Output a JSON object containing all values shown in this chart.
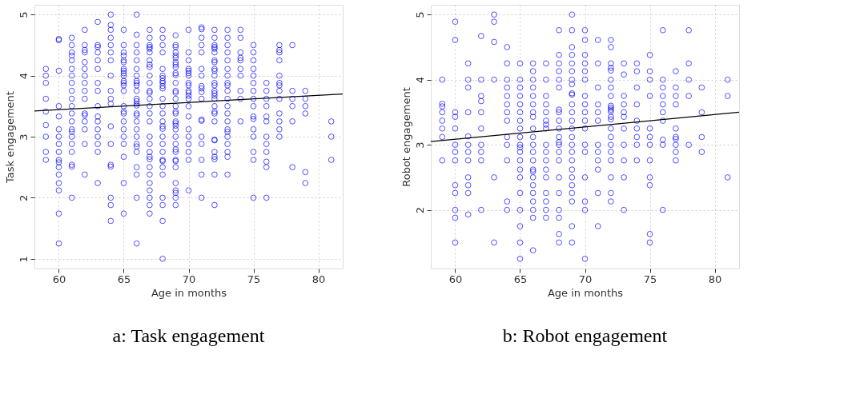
{
  "chart_data": [
    {
      "type": "scatter",
      "title": "a: Task engagement",
      "xlabel": "Age in months",
      "ylabel": "Task engagement",
      "xlim": [
        58.12,
        81.88
      ],
      "ylim": [
        0.84,
        5.16
      ],
      "xticks": [
        60,
        65,
        70,
        75,
        80
      ],
      "yticks": [
        1,
        2,
        3,
        4,
        5
      ],
      "grid": true,
      "series": [
        {
          "color": "#0000ff",
          "marker": "circle",
          "x": [
            59,
            59,
            59,
            59,
            59,
            59,
            59,
            59,
            59,
            60,
            60,
            60,
            60,
            60,
            60,
            60,
            60,
            60,
            60,
            60,
            60,
            60,
            60,
            60,
            60,
            60,
            61,
            61,
            61,
            61,
            61,
            61,
            61,
            61,
            61,
            61,
            61,
            61,
            61,
            61,
            61,
            61,
            61,
            61,
            61,
            61,
            61,
            62,
            62,
            62,
            62,
            62,
            62,
            62,
            62,
            62,
            62,
            62,
            62,
            62,
            62,
            62,
            62,
            63,
            63,
            63,
            63,
            63,
            63,
            63,
            63,
            63,
            63,
            63,
            63,
            63,
            63,
            63,
            63,
            64,
            64,
            64,
            64,
            64,
            64,
            64,
            64,
            64,
            64,
            64,
            64,
            64,
            64,
            64,
            64,
            64,
            64,
            65,
            65,
            65,
            65,
            65,
            65,
            65,
            65,
            65,
            65,
            65,
            65,
            65,
            65,
            65,
            65,
            65,
            65,
            65,
            65,
            65,
            65,
            65,
            65,
            66,
            66,
            66,
            66,
            66,
            66,
            66,
            66,
            66,
            66,
            66,
            66,
            66,
            66,
            66,
            66,
            66,
            66,
            66,
            66,
            66,
            66,
            66,
            66,
            66,
            66,
            66,
            67,
            67,
            67,
            67,
            67,
            67,
            67,
            67,
            67,
            67,
            67,
            67,
            67,
            67,
            67,
            67,
            67,
            67,
            67,
            67,
            67,
            67,
            67,
            67,
            67,
            67,
            67,
            67,
            67,
            68,
            68,
            68,
            68,
            68,
            68,
            68,
            68,
            68,
            68,
            68,
            68,
            68,
            68,
            68,
            68,
            68,
            68,
            68,
            68,
            68,
            68,
            68,
            68,
            68,
            68,
            68,
            68,
            69,
            69,
            69,
            69,
            69,
            69,
            69,
            69,
            69,
            69,
            69,
            69,
            69,
            69,
            69,
            69,
            69,
            69,
            69,
            69,
            69,
            69,
            69,
            69,
            69,
            69,
            69,
            69,
            69,
            69,
            69,
            69,
            69,
            69,
            70,
            70,
            70,
            70,
            70,
            70,
            70,
            70,
            70,
            70,
            70,
            70,
            70,
            70,
            70,
            70,
            70,
            70,
            70,
            70,
            70,
            71,
            71,
            71,
            71,
            71,
            71,
            71,
            71,
            71,
            71,
            71,
            71,
            71,
            71,
            71,
            71,
            71,
            71,
            72,
            72,
            72,
            72,
            72,
            72,
            72,
            72,
            72,
            72,
            72,
            72,
            72,
            72,
            72,
            72,
            72,
            72,
            72,
            72,
            72,
            72,
            72,
            72,
            72,
            72,
            72,
            72,
            73,
            73,
            73,
            73,
            73,
            73,
            73,
            73,
            73,
            73,
            73,
            73,
            73,
            73,
            73,
            73,
            73,
            73,
            73,
            73,
            73,
            74,
            74,
            74,
            74,
            74,
            74,
            74,
            74,
            74,
            74,
            75,
            75,
            75,
            75,
            75,
            75,
            75,
            75,
            75,
            75,
            75,
            75,
            75,
            75,
            75,
            75,
            76,
            76,
            76,
            76,
            76,
            76,
            76,
            76,
            76,
            76,
            76,
            76,
            77,
            77,
            77,
            77,
            77,
            77,
            77,
            77,
            77,
            77,
            77,
            77,
            77,
            78,
            78,
            78,
            78,
            78,
            78,
            79,
            79,
            79,
            79,
            79,
            79,
            81,
            81,
            81
          ],
          "values": [
            4.11,
            4.0,
            3.88,
            3.62,
            3.41,
            3.19,
            3.0,
            2.75,
            2.62,
            4.6,
            4.58,
            4.08,
            3.5,
            3.33,
            3.12,
            3.0,
            2.88,
            2.75,
            2.62,
            2.58,
            2.5,
            2.38,
            2.24,
            2.12,
            1.74,
            1.25,
            4.62,
            4.5,
            4.38,
            4.33,
            4.25,
            4.11,
            4.0,
            3.88,
            3.75,
            3.62,
            3.5,
            3.38,
            3.25,
            3.12,
            3.08,
            3.0,
            2.88,
            2.75,
            2.54,
            2.51,
            2.0,
            4.75,
            4.5,
            4.42,
            4.38,
            4.22,
            4.11,
            4.0,
            3.88,
            3.75,
            3.62,
            3.38,
            3.35,
            3.25,
            3.12,
            2.88,
            2.38,
            4.88,
            4.5,
            4.47,
            4.38,
            4.25,
            4.11,
            3.88,
            3.75,
            3.5,
            3.33,
            3.25,
            3.12,
            3.0,
            2.88,
            2.75,
            2.24,
            5.0,
            4.83,
            4.75,
            4.62,
            4.5,
            4.38,
            4.25,
            4.0,
            3.75,
            3.62,
            3.54,
            3.17,
            2.88,
            2.54,
            2.51,
            2.0,
            1.88,
            1.62,
            4.75,
            4.5,
            4.38,
            4.33,
            4.25,
            4.22,
            4.11,
            4.08,
            4.04,
            4.0,
            3.91,
            3.88,
            3.84,
            3.75,
            3.5,
            3.41,
            3.38,
            3.25,
            3.12,
            3.0,
            2.88,
            2.67,
            2.24,
            1.74,
            5.0,
            4.67,
            4.5,
            4.38,
            4.25,
            4.11,
            4.0,
            3.91,
            3.88,
            3.84,
            3.75,
            3.62,
            3.58,
            3.54,
            3.51,
            3.38,
            3.35,
            3.25,
            3.12,
            3.0,
            2.88,
            2.84,
            2.75,
            2.5,
            2.38,
            2.0,
            1.25,
            4.75,
            4.62,
            4.5,
            4.47,
            4.44,
            4.38,
            4.25,
            4.18,
            4.14,
            4.0,
            3.88,
            3.75,
            3.72,
            3.62,
            3.5,
            3.38,
            3.25,
            3.0,
            2.88,
            2.75,
            2.67,
            2.63,
            2.5,
            2.38,
            2.24,
            2.12,
            2.0,
            1.88,
            1.74,
            4.75,
            4.62,
            4.5,
            4.38,
            4.11,
            4.0,
            3.96,
            3.91,
            3.88,
            3.83,
            3.79,
            3.62,
            3.5,
            3.38,
            3.25,
            3.17,
            3.13,
            3.0,
            2.88,
            2.75,
            2.62,
            2.6,
            2.5,
            2.38,
            2.0,
            1.88,
            1.62,
            1.0,
            4.66,
            4.5,
            4.47,
            4.38,
            4.33,
            4.29,
            4.22,
            4.18,
            4.14,
            4.04,
            4.01,
            3.88,
            3.75,
            3.72,
            3.62,
            3.5,
            3.41,
            3.38,
            3.25,
            3.22,
            3.18,
            3.12,
            3.0,
            2.88,
            2.79,
            2.75,
            2.62,
            2.6,
            2.5,
            2.24,
            2.12,
            2.08,
            2.0,
            1.88,
            4.75,
            4.38,
            4.25,
            4.11,
            4.08,
            4.04,
            4.0,
            3.88,
            3.84,
            3.75,
            3.72,
            3.67,
            3.62,
            3.5,
            3.33,
            3.12,
            3.0,
            2.88,
            2.75,
            2.62,
            2.12,
            4.79,
            4.76,
            4.62,
            4.5,
            4.38,
            4.11,
            4.0,
            3.83,
            3.79,
            3.73,
            3.62,
            3.28,
            3.26,
            3.0,
            2.88,
            2.62,
            2.38,
            2.0,
            4.75,
            4.62,
            4.5,
            4.47,
            4.44,
            4.38,
            4.25,
            4.22,
            4.11,
            4.08,
            4.0,
            3.88,
            3.84,
            3.75,
            3.71,
            3.67,
            3.62,
            3.5,
            3.41,
            3.38,
            3.25,
            2.95,
            2.94,
            2.75,
            2.67,
            2.63,
            2.38,
            1.88,
            4.75,
            4.62,
            4.5,
            4.38,
            4.25,
            4.11,
            4.0,
            3.88,
            3.84,
            3.75,
            3.62,
            3.5,
            3.38,
            3.25,
            3.12,
            3.08,
            3.0,
            2.88,
            2.75,
            2.67,
            2.38,
            4.75,
            4.62,
            4.38,
            4.29,
            4.25,
            4.11,
            4.0,
            3.75,
            3.62,
            3.25,
            4.5,
            4.38,
            4.25,
            4.11,
            4.0,
            3.88,
            3.75,
            3.62,
            3.5,
            3.33,
            3.29,
            3.12,
            3.0,
            2.75,
            2.62,
            2.0,
            3.88,
            3.75,
            3.62,
            3.5,
            3.33,
            3.25,
            3.0,
            2.88,
            2.75,
            2.59,
            2.5,
            2.0,
            4.5,
            4.42,
            4.38,
            4.25,
            4.0,
            3.88,
            3.84,
            3.75,
            3.62,
            3.38,
            3.25,
            3.12,
            3.0,
            4.5,
            3.75,
            3.62,
            3.5,
            3.25,
            2.5,
            3.75,
            3.62,
            3.5,
            3.38,
            2.42,
            2.24,
            3.25,
            3.0,
            2.62
          ]
        },
        {
          "type": "line",
          "color": "#000000",
          "x": [
            58.12,
            81.88
          ],
          "values": [
            3.42,
            3.7
          ]
        }
      ]
    },
    {
      "type": "scatter",
      "title": "b: Robot engagement",
      "xlabel": "Age in months",
      "ylabel": "Robot engagement",
      "xlim": [
        58.12,
        81.88
      ],
      "ylim": [
        1.1,
        5.15
      ],
      "xticks": [
        60,
        65,
        70,
        75,
        80
      ],
      "yticks": [
        2,
        3,
        4,
        5
      ],
      "grid": true,
      "series": [
        {
          "color": "#0000ff",
          "marker": "circle",
          "x": [
            59,
            59,
            59,
            59,
            59,
            59,
            59,
            59,
            60,
            60,
            60,
            60,
            60,
            60,
            60,
            60,
            60,
            60,
            60,
            60,
            60,
            61,
            61,
            61,
            61,
            61,
            61,
            61,
            61,
            61,
            61,
            61,
            61,
            62,
            62,
            62,
            62,
            62,
            62,
            62,
            62,
            62,
            62,
            63,
            63,
            63,
            63,
            63,
            63,
            64,
            64,
            64,
            64,
            64,
            64,
            64,
            64,
            64,
            64,
            64,
            64,
            64,
            65,
            65,
            65,
            65,
            65,
            65,
            65,
            65,
            65,
            65,
            65,
            65,
            65,
            65,
            65,
            65,
            65,
            65,
            65,
            65,
            66,
            66,
            66,
            66,
            66,
            66,
            66,
            66,
            66,
            66,
            66,
            66,
            66,
            66,
            66,
            66,
            66,
            66,
            66,
            66,
            66,
            66,
            67,
            67,
            67,
            67,
            67,
            67,
            67,
            67,
            67,
            67,
            67,
            67,
            67,
            67,
            67,
            67,
            67,
            68,
            68,
            68,
            68,
            68,
            68,
            68,
            68,
            68,
            68,
            68,
            68,
            68,
            68,
            68,
            68,
            68,
            68,
            68,
            68,
            68,
            69,
            69,
            69,
            69,
            69,
            69,
            69,
            69,
            69,
            69,
            69,
            69,
            69,
            69,
            69,
            69,
            69,
            69,
            69,
            69,
            69,
            69,
            69,
            69,
            69,
            70,
            70,
            70,
            70,
            70,
            70,
            70,
            70,
            70,
            70,
            70,
            70,
            70,
            70,
            70,
            70,
            70,
            71,
            71,
            71,
            71,
            71,
            71,
            71,
            71,
            71,
            71,
            71,
            71,
            72,
            72,
            72,
            72,
            72,
            72,
            72,
            72,
            72,
            72,
            72,
            72,
            72,
            72,
            72,
            72,
            72,
            72,
            72,
            72,
            72,
            72,
            73,
            73,
            73,
            73,
            73,
            73,
            73,
            73,
            73,
            73,
            73,
            74,
            74,
            74,
            74,
            74,
            74,
            74,
            74,
            74,
            75,
            75,
            75,
            75,
            75,
            75,
            75,
            75,
            75,
            75,
            75,
            75,
            76,
            76,
            76,
            76,
            76,
            76,
            76,
            76,
            76,
            76,
            77,
            77,
            77,
            77,
            77,
            77,
            77,
            77,
            77,
            77,
            78,
            78,
            78,
            78,
            78,
            79,
            79,
            79,
            79,
            81,
            81,
            81
          ],
          "values": [
            4.0,
            3.63,
            3.59,
            3.5,
            3.37,
            3.25,
            3.12,
            2.76,
            4.89,
            4.61,
            3.5,
            3.43,
            3.25,
            3.0,
            2.89,
            2.76,
            2.38,
            2.26,
            2.0,
            1.88,
            1.5,
            4.25,
            4.0,
            3.88,
            3.5,
            3.13,
            3.0,
            2.89,
            2.76,
            2.5,
            2.38,
            2.26,
            1.93,
            4.67,
            4.0,
            3.75,
            3.67,
            3.5,
            3.25,
            3.0,
            2.89,
            2.76,
            2.0,
            5.0,
            4.89,
            4.58,
            4.0,
            2.5,
            1.5,
            4.5,
            4.25,
            4.0,
            3.88,
            3.75,
            3.62,
            3.5,
            3.37,
            3.12,
            3.0,
            2.76,
            2.13,
            2.0,
            4.25,
            4.0,
            3.88,
            3.75,
            3.62,
            3.5,
            3.37,
            3.25,
            3.12,
            3.0,
            2.96,
            2.89,
            2.76,
            2.62,
            2.5,
            2.26,
            2.0,
            1.75,
            1.5,
            1.25,
            4.25,
            4.13,
            4.0,
            3.88,
            3.75,
            3.62,
            3.5,
            3.43,
            3.25,
            3.12,
            3.0,
            2.89,
            2.76,
            2.62,
            2.59,
            2.5,
            2.38,
            2.26,
            2.13,
            2.0,
            1.88,
            1.38,
            4.25,
            4.0,
            3.75,
            3.62,
            3.5,
            3.37,
            3.31,
            3.25,
            3.0,
            2.89,
            2.76,
            2.62,
            2.5,
            2.26,
            2.13,
            2.0,
            1.88,
            4.76,
            4.38,
            4.25,
            4.13,
            4.0,
            3.88,
            3.54,
            3.5,
            3.37,
            3.25,
            3.12,
            3.04,
            3.0,
            2.89,
            2.76,
            2.5,
            2.26,
            2.0,
            1.88,
            1.63,
            1.5,
            5.0,
            4.76,
            4.5,
            4.38,
            4.25,
            4.13,
            4.0,
            3.93,
            3.79,
            3.77,
            3.62,
            3.5,
            3.37,
            3.25,
            3.12,
            3.0,
            2.89,
            2.76,
            2.62,
            2.5,
            2.38,
            2.26,
            2.13,
            1.75,
            1.5,
            4.76,
            4.61,
            4.38,
            4.25,
            4.13,
            4.0,
            3.75,
            3.62,
            3.5,
            3.37,
            3.25,
            3.0,
            2.89,
            2.5,
            2.13,
            2.0,
            1.25,
            4.61,
            4.25,
            3.88,
            3.62,
            3.5,
            3.37,
            3.0,
            2.89,
            2.76,
            2.62,
            2.26,
            1.75,
            4.61,
            4.5,
            4.25,
            4.18,
            4.14,
            4.0,
            3.88,
            3.75,
            3.6,
            3.57,
            3.54,
            3.51,
            3.43,
            3.39,
            3.25,
            3.12,
            3.0,
            2.89,
            2.76,
            2.5,
            2.26,
            2.13,
            4.25,
            4.08,
            3.75,
            3.62,
            3.5,
            3.43,
            3.25,
            3.0,
            2.76,
            2.5,
            2.0,
            4.25,
            4.13,
            3.88,
            3.62,
            3.37,
            3.25,
            3.12,
            3.0,
            2.76,
            4.38,
            4.13,
            4.0,
            3.75,
            3.25,
            3.12,
            3.0,
            2.76,
            2.5,
            2.38,
            1.63,
            1.5,
            4.76,
            4.0,
            3.88,
            3.75,
            3.62,
            3.5,
            3.37,
            3.08,
            3.0,
            2.0,
            4.13,
            3.88,
            3.75,
            3.62,
            3.25,
            3.12,
            3.09,
            3.0,
            2.89,
            2.76,
            4.76,
            4.25,
            4.0,
            3.75,
            3.0,
            3.88,
            3.5,
            3.12,
            2.89,
            4.0,
            3.75,
            2.5
          ]
        },
        {
          "type": "line",
          "color": "#000000",
          "x": [
            58.12,
            81.88
          ],
          "values": [
            3.05,
            3.5
          ]
        }
      ]
    }
  ]
}
